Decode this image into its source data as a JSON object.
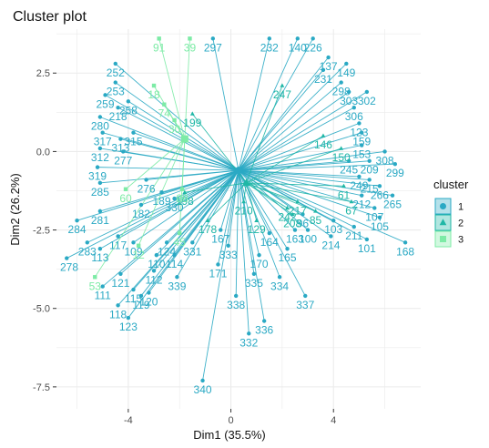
{
  "chart_data": {
    "type": "scatter",
    "title": "Cluster plot",
    "xlabel": "Dim1 (35.5%)",
    "ylabel": "Dim2 (26.2%)",
    "xlim": [
      -6.8,
      7.4
    ],
    "ylim": [
      -8.2,
      3.9
    ],
    "x_ticks": [
      -4,
      0,
      4
    ],
    "y_ticks": [
      -7.5,
      -5.0,
      -2.5,
      0.0,
      2.5
    ],
    "x_tick_labels": [
      "-4",
      "0",
      "4"
    ],
    "y_tick_labels": [
      "-7.5",
      "-5.0",
      "-2.5",
      "0.0",
      "2.5"
    ],
    "grid": true,
    "legend_title": "cluster",
    "legend_position": "right",
    "series": [
      {
        "name": "1",
        "color": "#2AA9C4",
        "marker": "circle",
        "centroid": [
          0.3,
          -0.6
        ],
        "points": [
          {
            "label": "340",
            "x": -1.1,
            "y": -7.3
          },
          {
            "label": "332",
            "x": 0.7,
            "y": -5.8
          },
          {
            "label": "336",
            "x": 1.3,
            "y": -5.4
          },
          {
            "label": "337",
            "x": 2.9,
            "y": -4.6
          },
          {
            "label": "338",
            "x": 0.2,
            "y": -4.6
          },
          {
            "label": "335",
            "x": 0.9,
            "y": -3.9
          },
          {
            "label": "334",
            "x": 1.9,
            "y": -4.0
          },
          {
            "label": "339",
            "x": -2.1,
            "y": -4.0
          },
          {
            "label": "120",
            "x": -3.2,
            "y": -4.5
          },
          {
            "label": "123",
            "x": -4.0,
            "y": -5.3
          },
          {
            "label": "118",
            "x": -4.4,
            "y": -4.9
          },
          {
            "label": "119",
            "x": -3.5,
            "y": -4.6
          },
          {
            "label": "115",
            "x": -3.8,
            "y": -4.4
          },
          {
            "label": "111",
            "x": -5.0,
            "y": -4.3
          },
          {
            "label": "121",
            "x": -4.3,
            "y": -3.9
          },
          {
            "label": "112",
            "x": -3.0,
            "y": -3.8
          },
          {
            "label": "113",
            "x": -5.1,
            "y": -3.1
          },
          {
            "label": "117",
            "x": -4.4,
            "y": -2.7
          },
          {
            "label": "283",
            "x": -5.6,
            "y": -2.9
          },
          {
            "label": "284",
            "x": -6.0,
            "y": -2.2
          },
          {
            "label": "278",
            "x": -6.4,
            "y": -3.4
          },
          {
            "label": "281",
            "x": -5.1,
            "y": -1.9
          },
          {
            "label": "285",
            "x": -5.1,
            "y": -1.0
          },
          {
            "label": "319",
            "x": -5.2,
            "y": -0.5
          },
          {
            "label": "312",
            "x": -5.1,
            "y": 0.1
          },
          {
            "label": "317",
            "x": -5.0,
            "y": 0.6
          },
          {
            "label": "280",
            "x": -5.1,
            "y": 1.1
          },
          {
            "label": "259",
            "x": -4.9,
            "y": 1.8
          },
          {
            "label": "252",
            "x": -4.5,
            "y": 2.8
          },
          {
            "label": "253",
            "x": -4.5,
            "y": 2.2
          },
          {
            "label": "218",
            "x": -4.4,
            "y": 1.4
          },
          {
            "label": "258",
            "x": -4.0,
            "y": 1.6
          },
          {
            "label": "182",
            "x": -3.5,
            "y": -1.7
          },
          {
            "label": "109",
            "x": -3.8,
            "y": -2.9
          },
          {
            "label": "110",
            "x": -2.9,
            "y": -3.3
          },
          {
            "label": "114",
            "x": -2.2,
            "y": -3.3
          },
          {
            "label": "124",
            "x": -2.5,
            "y": -2.9
          },
          {
            "label": "331",
            "x": -1.5,
            "y": -2.9
          },
          {
            "label": "333",
            "x": -0.1,
            "y": -3.0
          },
          {
            "label": "171",
            "x": -0.5,
            "y": -3.6
          },
          {
            "label": "170",
            "x": 1.1,
            "y": -3.3
          },
          {
            "label": "165",
            "x": 2.2,
            "y": -3.1
          },
          {
            "label": "163",
            "x": 2.5,
            "y": -2.5
          },
          {
            "label": "100",
            "x": 3.0,
            "y": -2.5
          },
          {
            "label": "214",
            "x": 3.9,
            "y": -2.7
          },
          {
            "label": "211",
            "x": 4.8,
            "y": -2.4
          },
          {
            "label": "101",
            "x": 5.3,
            "y": -2.8
          },
          {
            "label": "168",
            "x": 6.8,
            "y": -2.9
          },
          {
            "label": "105",
            "x": 5.8,
            "y": -2.1
          },
          {
            "label": "107",
            "x": 5.6,
            "y": -1.8
          },
          {
            "label": "265",
            "x": 6.3,
            "y": -1.4
          },
          {
            "label": "266",
            "x": 5.8,
            "y": -1.1
          },
          {
            "label": "212",
            "x": 5.1,
            "y": -1.4
          },
          {
            "label": "215",
            "x": 5.4,
            "y": -0.9
          },
          {
            "label": "249",
            "x": 5.0,
            "y": -0.8
          },
          {
            "label": "209",
            "x": 5.4,
            "y": -0.3
          },
          {
            "label": "299",
            "x": 6.4,
            "y": -0.4
          },
          {
            "label": "308",
            "x": 6.0,
            "y": 0.0
          },
          {
            "label": "153",
            "x": 5.1,
            "y": 0.2
          },
          {
            "label": "159",
            "x": 5.1,
            "y": 0.6
          },
          {
            "label": "123b",
            "x": 5.0,
            "y": 0.9
          },
          {
            "label": "302",
            "x": 5.3,
            "y": 1.9
          },
          {
            "label": "303",
            "x": 4.6,
            "y": 1.9
          },
          {
            "label": "298",
            "x": 4.3,
            "y": 2.2
          },
          {
            "label": "149",
            "x": 4.5,
            "y": 2.8
          },
          {
            "label": "137",
            "x": 3.8,
            "y": 3.0
          },
          {
            "label": "231",
            "x": 3.6,
            "y": 2.6
          },
          {
            "label": "226",
            "x": 3.2,
            "y": 3.6
          },
          {
            "label": "140",
            "x": 2.6,
            "y": 3.6
          },
          {
            "label": "232",
            "x": 1.5,
            "y": 3.6
          },
          {
            "label": "297",
            "x": -0.7,
            "y": 3.6
          },
          {
            "label": "306",
            "x": 4.8,
            "y": 1.4
          },
          {
            "label": "245",
            "x": 4.6,
            "y": -0.3
          },
          {
            "label": "103",
            "x": 4.0,
            "y": -2.2
          },
          {
            "label": "96",
            "x": 2.8,
            "y": -2.0
          },
          {
            "label": "164",
            "x": 1.5,
            "y": -2.6
          },
          {
            "label": "167",
            "x": -0.4,
            "y": -2.5
          },
          {
            "label": "277",
            "x": -4.2,
            "y": 0.0
          },
          {
            "label": "276",
            "x": -3.3,
            "y": -0.9
          },
          {
            "label": "313",
            "x": -4.3,
            "y": 0.4
          },
          {
            "label": "315",
            "x": -3.8,
            "y": 0.6
          },
          {
            "label": "330",
            "x": -2.2,
            "y": -1.5
          },
          {
            "label": "189",
            "x": -2.7,
            "y": -1.3
          }
        ]
      },
      {
        "name": "2",
        "color": "#1FB7A6",
        "marker": "triangle",
        "centroid": [
          0.6,
          -1.0
        ],
        "points": [
          {
            "label": "208",
            "x": 2.4,
            "y": -2.0
          },
          {
            "label": "85",
            "x": 3.3,
            "y": -1.9
          },
          {
            "label": "67",
            "x": 4.7,
            "y": -1.6
          },
          {
            "label": "217",
            "x": 2.6,
            "y": -1.6
          },
          {
            "label": "150",
            "x": 4.3,
            "y": 0.1
          },
          {
            "label": "210",
            "x": 0.5,
            "y": -1.6
          },
          {
            "label": "178",
            "x": -0.9,
            "y": -2.2
          },
          {
            "label": "129",
            "x": 1.0,
            "y": -2.2
          },
          {
            "label": "198",
            "x": -1.8,
            "y": -1.3
          },
          {
            "label": "146",
            "x": 3.6,
            "y": 0.5
          },
          {
            "label": "247",
            "x": 2.0,
            "y": 2.1
          },
          {
            "label": "242",
            "x": 2.2,
            "y": -1.8
          },
          {
            "label": "61",
            "x": 4.4,
            "y": -1.1
          },
          {
            "label": "199",
            "x": -1.5,
            "y": 1.2
          }
        ]
      },
      {
        "name": "3",
        "color": "#7DEBA6",
        "marker": "square",
        "centroid": [
          -1.8,
          0.4
        ],
        "points": [
          {
            "label": "53",
            "x": -5.3,
            "y": -4.0
          },
          {
            "label": "60",
            "x": -4.1,
            "y": -1.2
          },
          {
            "label": "91",
            "x": -2.8,
            "y": 3.6
          },
          {
            "label": "39",
            "x": -1.6,
            "y": 3.6
          },
          {
            "label": "18",
            "x": -3.0,
            "y": 2.1
          },
          {
            "label": "74",
            "x": -2.6,
            "y": 1.5
          },
          {
            "label": "30",
            "x": -2.2,
            "y": 1.0
          },
          {
            "label": "88",
            "x": -1.9,
            "y": -1.2
          },
          {
            "label": "12",
            "x": -3.6,
            "y": -3.0
          },
          {
            "label": "45",
            "x": -2.0,
            "y": -2.6
          }
        ]
      }
    ]
  }
}
